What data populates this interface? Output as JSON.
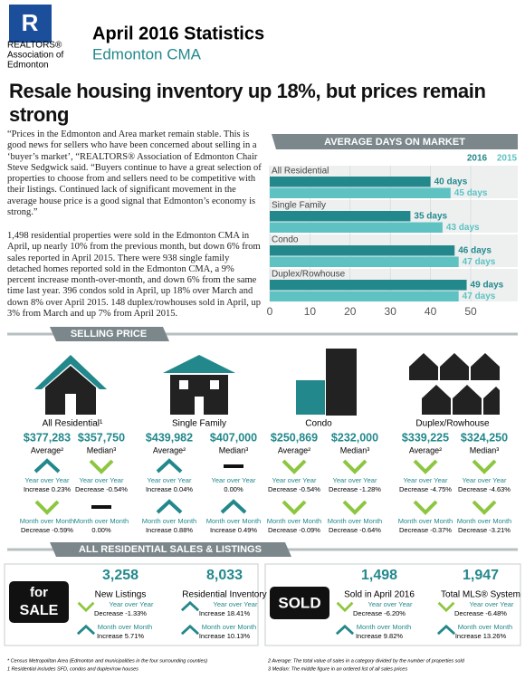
{
  "header": {
    "logo": [
      "REALTORS®",
      "Association of",
      "Edmonton"
    ],
    "title": "April 2016 Statistics",
    "subtitle": "Edmonton CMA"
  },
  "headline": "Resale housing inventory up 18%, but prices remain strong",
  "paragraphs": [
    "“Prices in the Edmonton and Area market remain stable. This is good news for sellers who have been concerned about selling in a ‘buyer’s market’, “REALTORS® Association of Edmonton Chair Steve Sedgwick said. “Buyers continue to have a great selection of properties to choose from and sellers need to be competitive with their listings. Continued lack of significant movement in the average house price is a good signal that Edmonton’s economy is strong.”",
    "1,498 residential properties were sold in the Edmonton CMA in April, up nearly 10% from the previous month, but down 6% from sales reported in April 2015. There were 938 single family detached homes reported sold in the Edmonton CMA, a 9% percent increase month-over-month, and down 6% from the same time last year. 396 condos sold in April, up 18% over March and down 8% over April 2015. 148 duplex/rowhouses sold in April, up 3% from March and up 7% from April 2015."
  ],
  "chart_data": {
    "type": "bar",
    "orientation": "horizontal",
    "title": "AVERAGE DAYS ON MARKET",
    "categories": [
      "All Residential",
      "Single Family",
      "Condo",
      "Duplex/Rowhouse"
    ],
    "series": [
      {
        "name": "2016",
        "color": "#23888c",
        "values": [
          40,
          35,
          46,
          49
        ],
        "value_labels": [
          "40 days",
          "35 days",
          "46 days",
          "49 days"
        ]
      },
      {
        "name": "2015",
        "color": "#5ec2c2",
        "values": [
          45,
          43,
          47,
          47
        ],
        "value_labels": [
          "45 days",
          "43 days",
          "47 days",
          "47 days"
        ]
      }
    ],
    "xlim": [
      0,
      50
    ],
    "xticks": [
      0,
      10,
      20,
      30,
      40,
      50
    ],
    "grid": true
  },
  "selling_price": {
    "title": "SELLING PRICE",
    "yoy_label": "Year over Year",
    "mom_label": "Month over Month",
    "groups": [
      {
        "name": "All Residential¹",
        "stats": [
          {
            "value": "$377,283",
            "label": "Average²",
            "yoy": "Increase 0.23%",
            "mom": "Decrease -0.59%"
          },
          {
            "value": "$357,750",
            "label": "Median³",
            "yoy": "Decrease -0.54%",
            "mom": "0.00%"
          }
        ]
      },
      {
        "name": "Single Family",
        "stats": [
          {
            "value": "$439,982",
            "label": "Average²",
            "yoy": "Increase 0.04%",
            "mom": "Increase 0.88%"
          },
          {
            "value": "$407,000",
            "label": "Median³",
            "yoy": "0.00%",
            "mom": "Increase 0.49%"
          }
        ]
      },
      {
        "name": "Condo",
        "stats": [
          {
            "value": "$250,869",
            "label": "Average²",
            "yoy": "Decrease -0.54%",
            "mom": "Decrease -0.09%"
          },
          {
            "value": "$232,000",
            "label": "Median³",
            "yoy": "Decrease -1.28%",
            "mom": "Decrease -0.64%"
          }
        ]
      },
      {
        "name": "Duplex/Rowhouse",
        "stats": [
          {
            "value": "$339,225",
            "label": "Average²",
            "yoy": "Decrease -4.75%",
            "mom": "Decrease -0.37%"
          },
          {
            "value": "$324,250",
            "label": "Median³",
            "yoy": "Decrease -4.63%",
            "mom": "Decrease -3.21%"
          }
        ]
      }
    ]
  },
  "sales_listings": {
    "title": "ALL RESIDENTIAL SALES & LISTINGS",
    "signs": [
      [
        "for",
        "SALE"
      ],
      [
        "SOLD"
      ]
    ],
    "items": [
      {
        "value": "3,258",
        "label": "New Listings",
        "yoy": "Decrease -1.33%",
        "mom": "Increase 5.71%"
      },
      {
        "value": "8,033",
        "label": "Residential Inventory",
        "yoy": "Increase 18.41%",
        "mom": "Increase 10.13%"
      },
      {
        "value": "1,498",
        "label": "Sold in April 2016",
        "yoy": "Decrease -6.20%",
        "mom": "Increase 9.82%"
      },
      {
        "value": "1,947",
        "label": "Total MLS® System",
        "yoy": "Decrease -6.48%",
        "mom": "Increase 13.26%"
      }
    ]
  },
  "footnotes": [
    "* Census Metropolitan Area (Edmonton and municipalities in the four surrounding counties)",
    "1 Residential includes SFD, condos and duplex/row houses",
    "2 Average: The total value of sales in a category divided by the number of properties sold",
    "3 Median: The middle figure in an ordered list of all sales prices"
  ]
}
